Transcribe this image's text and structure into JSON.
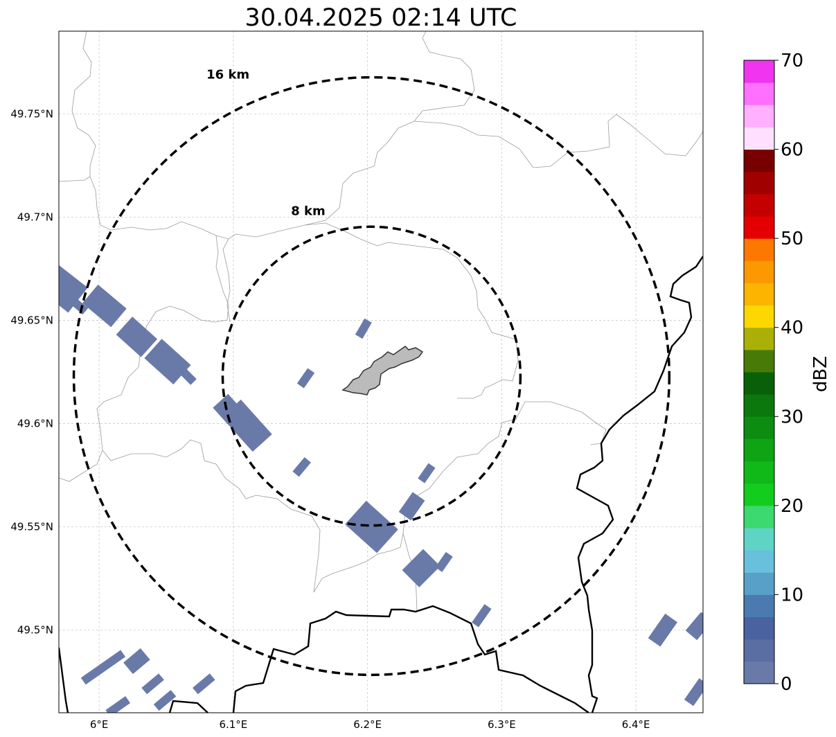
{
  "title": "30.04.2025 02:14 UTC",
  "map": {
    "lon_range": [
      5.97,
      6.45
    ],
    "lat_range": [
      49.46,
      49.79
    ],
    "lon_ticks": [
      {
        "value": 6.0,
        "label": "6°E"
      },
      {
        "value": 6.1,
        "label": "6.1°E"
      },
      {
        "value": 6.2,
        "label": "6.2°E"
      },
      {
        "value": 6.3,
        "label": "6.3°E"
      },
      {
        "value": 6.4,
        "label": "6.4°E"
      }
    ],
    "lat_ticks": [
      {
        "value": 49.75,
        "label": "49.75°N"
      },
      {
        "value": 49.7,
        "label": "49.7°N"
      },
      {
        "value": 49.65,
        "label": "49.65°N"
      },
      {
        "value": 49.6,
        "label": "49.6°N"
      },
      {
        "value": 49.55,
        "label": "49.55°N"
      },
      {
        "value": 49.5,
        "label": "49.5°N"
      }
    ],
    "gridlines": true,
    "radar_center": {
      "lon": 6.203,
      "lat": 49.623
    },
    "range_rings": [
      {
        "radius_km": 16,
        "label": "16 km",
        "label_lon": 6.08,
        "label_lat": 49.767
      },
      {
        "radius_km": 8,
        "label": "8 km",
        "label_lon": 6.143,
        "label_lat": 49.701
      }
    ],
    "echo_color": "#6a7aa8",
    "echoes": [
      {
        "lon": 5.97,
        "lat": 49.667,
        "length_km": 2.6,
        "width_km": 1.7,
        "angle": 38
      },
      {
        "lon": 5.985,
        "lat": 49.657,
        "length_km": 0.9,
        "width_km": 0.45,
        "angle": 40
      },
      {
        "lon": 6.004,
        "lat": 49.657,
        "length_km": 2.0,
        "width_km": 1.3,
        "angle": 40
      },
      {
        "lon": 6.028,
        "lat": 49.642,
        "length_km": 1.8,
        "width_km": 1.3,
        "angle": 42
      },
      {
        "lon": 6.051,
        "lat": 49.63,
        "length_km": 2.1,
        "width_km": 1.4,
        "angle": 42
      },
      {
        "lon": 6.066,
        "lat": 49.623,
        "length_km": 0.9,
        "width_km": 0.45,
        "angle": 45
      },
      {
        "lon": 6.096,
        "lat": 49.607,
        "length_km": 1.2,
        "width_km": 1.1,
        "angle": 48
      },
      {
        "lon": 6.11,
        "lat": 49.599,
        "length_km": 2.5,
        "width_km": 1.4,
        "angle": 48
      },
      {
        "lon": 6.197,
        "lat": 49.646,
        "length_km": 1.0,
        "width_km": 0.45,
        "angle": -60
      },
      {
        "lon": 6.154,
        "lat": 49.622,
        "length_km": 1.0,
        "width_km": 0.45,
        "angle": -55
      },
      {
        "lon": 6.151,
        "lat": 49.579,
        "length_km": 1.0,
        "width_km": 0.45,
        "angle": -50
      },
      {
        "lon": 6.203,
        "lat": 49.55,
        "length_km": 2.3,
        "width_km": 1.7,
        "angle": 42
      },
      {
        "lon": 6.233,
        "lat": 49.56,
        "length_km": 1.3,
        "width_km": 0.8,
        "angle": -55
      },
      {
        "lon": 6.244,
        "lat": 49.576,
        "length_km": 1.0,
        "width_km": 0.45,
        "angle": -55
      },
      {
        "lon": 6.24,
        "lat": 49.53,
        "length_km": 1.6,
        "width_km": 1.3,
        "angle": -45
      },
      {
        "lon": 6.257,
        "lat": 49.533,
        "length_km": 1.0,
        "width_km": 0.45,
        "angle": -55
      },
      {
        "lon": 6.285,
        "lat": 49.507,
        "length_km": 1.2,
        "width_km": 0.45,
        "angle": -55
      },
      {
        "lon": 6.42,
        "lat": 49.5,
        "length_km": 1.6,
        "width_km": 0.8,
        "angle": -55
      },
      {
        "lon": 6.447,
        "lat": 49.502,
        "length_km": 1.3,
        "width_km": 0.8,
        "angle": -50
      },
      {
        "lon": 6.445,
        "lat": 49.47,
        "length_km": 1.4,
        "width_km": 0.6,
        "angle": -55
      },
      {
        "lon": 6.003,
        "lat": 49.482,
        "length_km": 2.6,
        "width_km": 0.45,
        "angle": -35
      },
      {
        "lon": 6.028,
        "lat": 49.485,
        "length_km": 1.2,
        "width_km": 0.8,
        "angle": -40
      },
      {
        "lon": 6.04,
        "lat": 49.474,
        "length_km": 1.2,
        "width_km": 0.45,
        "angle": -40
      },
      {
        "lon": 6.049,
        "lat": 49.466,
        "length_km": 1.2,
        "width_km": 0.45,
        "angle": -40
      },
      {
        "lon": 6.014,
        "lat": 49.463,
        "length_km": 1.3,
        "width_km": 0.45,
        "angle": -35
      },
      {
        "lon": 6.078,
        "lat": 49.474,
        "length_km": 1.2,
        "width_km": 0.45,
        "angle": -40
      }
    ]
  },
  "colorbar": {
    "label": "dBZ",
    "min": 0,
    "max": 70,
    "step": 2.5,
    "tick_values": [
      0,
      10,
      20,
      30,
      40,
      50,
      60,
      70
    ],
    "tick_labels": [
      "0",
      "10",
      "20",
      "30",
      "40",
      "50",
      "60",
      "70"
    ],
    "colors": [
      "#6a7aa8",
      "#5a6ea4",
      "#4a62a0",
      "#4a7ab0",
      "#58a0c8",
      "#68c0dc",
      "#60d4c4",
      "#3cd870",
      "#12cc1e",
      "#10b818",
      "#0ea414",
      "#0c8c10",
      "#0a780c",
      "#086008",
      "#487a08",
      "#aab008",
      "#fcd800",
      "#fcb400",
      "#fc9800",
      "#fc7800",
      "#e40000",
      "#c40000",
      "#a00000",
      "#780000",
      "#ffe0ff",
      "#ffb0ff",
      "#ff70ff",
      "#f034f0"
    ]
  }
}
